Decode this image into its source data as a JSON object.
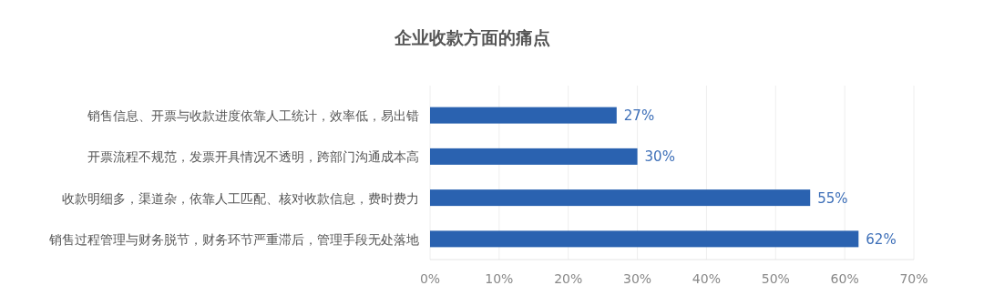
{
  "chart_data": {
    "type": "bar",
    "orientation": "horizontal",
    "title": "企业收款方面的痛点",
    "categories": [
      "销售信息、开票与收款进度依靠人工统计，效率低，易出错",
      "开票流程不规范，发票开具情况不透明，跨部门沟通成本高",
      "收款明细多，渠道杂，依靠人工匹配、核对收款信息，费时费力",
      "销售过程管理与财务脱节，财务环节严重滞后，管理手段无处落地"
    ],
    "values": [
      27,
      30,
      55,
      62
    ],
    "value_labels": [
      "27%",
      "30%",
      "55%",
      "62%"
    ],
    "color": "#2a62b0",
    "xlim": [
      0,
      70
    ],
    "xticks": [
      {
        "value": 0,
        "label": "0%"
      },
      {
        "value": 10,
        "label": "10%"
      },
      {
        "value": 20,
        "label": "20%"
      },
      {
        "value": 30,
        "label": "30%"
      },
      {
        "value": 40,
        "label": "40%"
      },
      {
        "value": 50,
        "label": "50%"
      },
      {
        "value": 60,
        "label": "60%"
      },
      {
        "value": 70,
        "label": "70%"
      }
    ],
    "grid": "x"
  }
}
